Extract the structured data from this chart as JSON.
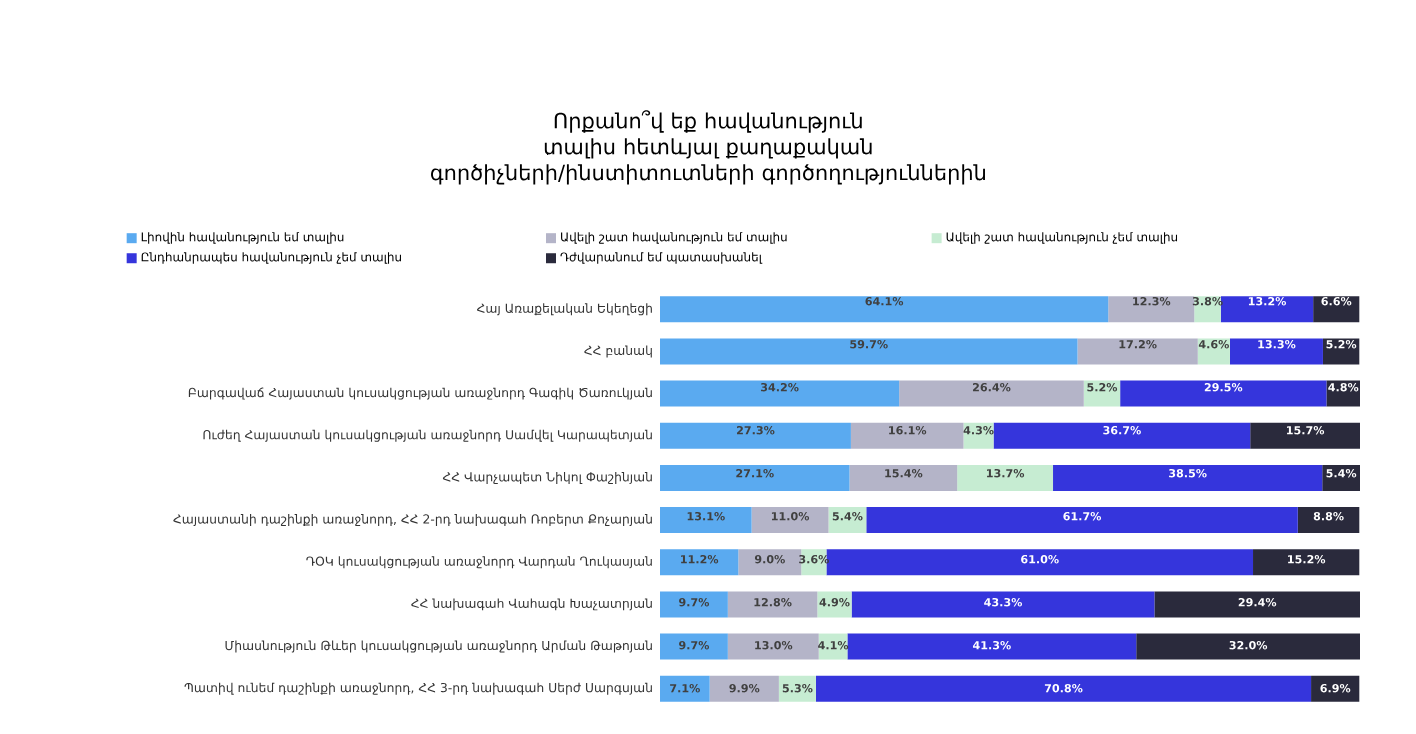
{
  "chart_data": {
    "type": "bar",
    "orientation": "horizontal",
    "stacked": true,
    "data_labels": true,
    "legend": "top",
    "title": "Որքանո՞վ եք հավանություն տալիս հետևյալ քաղաքական գործիչների/ինստիտուտների գործողություններին",
    "categories": [
      "Հայ Առաքելական Եկեղեցի",
      "ՀՀ բանակ",
      "Բարգավաճ Հայաստան կուսակցության առաջնորդ Գագիկ Ծառուկյան",
      "Ուժեղ Հայաստան կուսակցության առաջնորդ Սամվել Կարապետյան",
      "ՀՀ Վարչապետ Նիկոլ Փաշինյան",
      "Հայաստանի դաշինքի առաջնորդ, ՀՀ 2-րդ նախագահ Ռոբերտ Քոչարյան",
      "ԴՕԿ կուսակցության առաջնորդ Վարդան Ղուկասյան",
      "ՀՀ նախագահ Վահագն Խաչատրյան",
      "Միասնություն Թևեր կուսակցության առաջնորդ Արման Թաթոյան",
      "Պատիվ ունեմ դաշինքի առաջնորդ, ՀՀ 3-րդ նախագահ Սերժ Սարգսյան"
    ],
    "series": [
      {
        "name": "Լիովին հավանություն եմ տալիս",
        "color": "#5aaaf0",
        "values": [
          64.1,
          59.7,
          34.2,
          27.3,
          27.1,
          13.1,
          11.2,
          9.7,
          9.7,
          7.1
        ],
        "value_labels": [
          "64.1%",
          "59.7%",
          "34.2%",
          "27.3%",
          "27.1%",
          "13.1%",
          "11.2%",
          "9.7%",
          "9.7%",
          "7.1%"
        ]
      },
      {
        "name": "Ավելի շատ հավանություն եմ տալիս",
        "color": "#b4b4c8",
        "values": [
          12.3,
          17.2,
          26.4,
          16.1,
          15.4,
          11.0,
          9.0,
          12.8,
          13.0,
          9.9
        ],
        "value_labels": [
          "12.3%",
          "17.2%",
          "26.4%",
          "16.1%",
          "15.4%",
          "11.0%",
          "9.0%",
          "12.8%",
          "13.0%",
          "9.9%"
        ]
      },
      {
        "name": "Ավելի շատ հավանություն չեմ տալիս",
        "color": "#c6ecd2",
        "values": [
          3.8,
          4.6,
          5.2,
          4.3,
          13.7,
          5.4,
          3.6,
          4.9,
          4.1,
          5.3
        ],
        "value_labels": [
          "3.8%",
          "4.6%",
          "5.2%",
          "4.3%",
          "13.7%",
          "5.4%",
          "3.6%",
          "4.9%",
          "4.1%",
          "5.3%"
        ]
      },
      {
        "name": "Ընդհանրապես հավանություն չեմ տալիս",
        "color": "#3535dc",
        "values": [
          13.2,
          13.3,
          29.5,
          36.7,
          38.5,
          61.7,
          61.0,
          43.3,
          41.3,
          70.8
        ],
        "value_labels": [
          "13.2%",
          "13.3%",
          "29.5%",
          "36.7%",
          "38.5%",
          "61.7%",
          "61.0%",
          "43.3%",
          "41.3%",
          "70.8%"
        ]
      },
      {
        "name": "Դժվարանում եմ պատասխանել",
        "color": "#2a2a3c",
        "values": [
          6.6,
          5.2,
          4.8,
          15.7,
          5.4,
          8.8,
          15.2,
          29.4,
          32.0,
          6.9
        ],
        "value_labels": [
          "6.6%",
          "5.2%",
          "4.8%",
          "15.7%",
          "5.4%",
          "8.8%",
          "15.2%",
          "29.4%",
          "32.0%",
          "6.9%"
        ]
      }
    ]
  }
}
